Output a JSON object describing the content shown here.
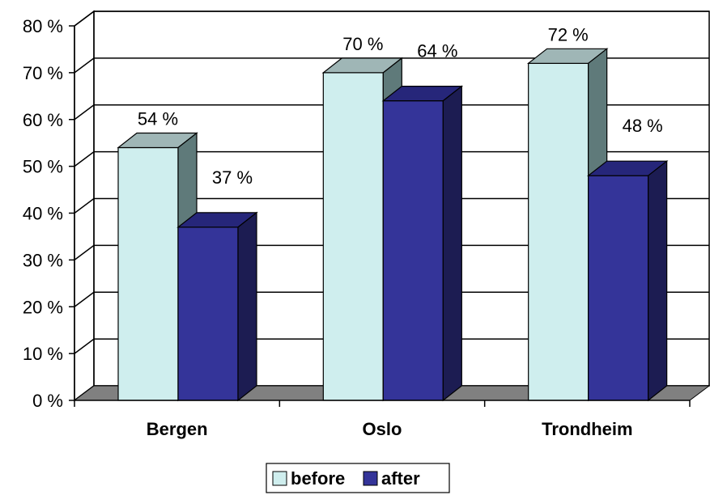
{
  "chart_data": {
    "type": "bar",
    "categories": [
      "Bergen",
      "Oslo",
      "Trondheim"
    ],
    "series": [
      {
        "name": "before",
        "values": [
          54,
          70,
          72
        ],
        "labels": [
          "54 %",
          "70 %",
          "72 %"
        ],
        "color": "#cfeeee",
        "side_color": "#5f7a7a",
        "top_color": "#9fb6b6"
      },
      {
        "name": "after",
        "values": [
          37,
          64,
          48
        ],
        "labels": [
          "37 %",
          "64 %",
          "48 %"
        ],
        "color": "#343499",
        "side_color": "#1c1c52",
        "top_color": "#26267a"
      }
    ],
    "ylim": [
      0,
      80
    ],
    "yticks": [
      0,
      10,
      20,
      30,
      40,
      50,
      60,
      70,
      80
    ],
    "ytick_labels": [
      "0 %",
      "10 %",
      "20 %",
      "30 %",
      "40 %",
      "50 %",
      "60 %",
      "70 %",
      "80 %"
    ],
    "grid": true,
    "legend": "bottom-center",
    "three_d": true,
    "floor_color": "#808080"
  }
}
